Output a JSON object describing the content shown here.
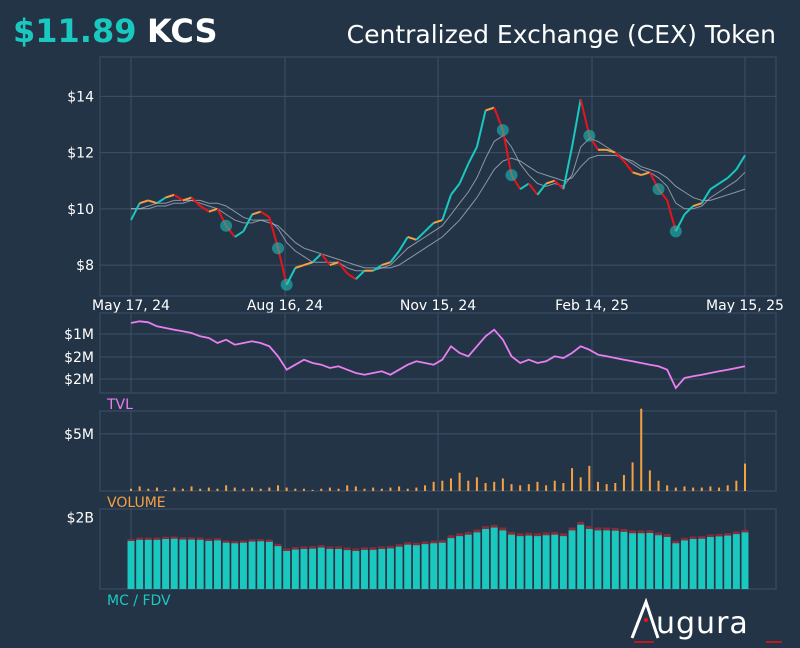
{
  "header": {
    "price": "$11.89",
    "ticker": "KCS",
    "token_name": "Centralized Exchange (CEX) Token"
  },
  "colors": {
    "background": "#243447",
    "grid": "#3d5068",
    "up": "#19c9c0",
    "flat": "#f5a142",
    "down": "#e8141a",
    "tvl": "#e87ff0",
    "volume": "#f5a142",
    "mcap": "#19c9c0",
    "fdv": "#8a2b3a",
    "ma": "#b8c0cc"
  },
  "brand": {
    "logo_text": "ugura",
    "logo_icon": "augura-a-logo-icon"
  },
  "chart_data": [
    {
      "type": "line",
      "title": "",
      "x_ticks": [
        "May 17, 24",
        "Aug 16, 24",
        "Nov 15, 24",
        "Feb 14, 25",
        "May 15, 25"
      ],
      "y_ticks": [
        "$8",
        "$10",
        "$12",
        "$14"
      ],
      "ylim": [
        6.9,
        15.4
      ],
      "x_range": [
        "2024-05-17",
        "2025-05-15"
      ],
      "grid": true,
      "series": [
        {
          "values": [
            9.6,
            10.2,
            10.3,
            10.2,
            10.4,
            10.5,
            10.3,
            10.4,
            10.1,
            9.9,
            10.0,
            9.4,
            9.0,
            9.2,
            9.8,
            9.9,
            9.7,
            8.6,
            7.3,
            7.9,
            8.0,
            8.1,
            8.4,
            8.0,
            8.1,
            7.7,
            7.5,
            7.8,
            7.8,
            8.0,
            8.1,
            8.5,
            9.0,
            8.9,
            9.2,
            9.5,
            9.6,
            10.5,
            10.9,
            11.6,
            12.2,
            13.5,
            13.6,
            12.8,
            11.2,
            10.7,
            10.9,
            10.5,
            10.9,
            11.0,
            10.7,
            12.2,
            13.9,
            12.6,
            12.1,
            12.1,
            12.0,
            11.7,
            11.3,
            11.2,
            11.3,
            10.7,
            10.3,
            9.2,
            9.8,
            10.1,
            10.2,
            10.7,
            10.9,
            11.1,
            11.4,
            11.9
          ]
        },
        {
          "values": [
            10.0,
            10.0,
            10.1,
            10.2,
            10.2,
            10.3,
            10.3,
            10.3,
            10.2,
            10.1,
            10.0,
            9.8,
            9.6,
            9.5,
            9.5,
            9.6,
            9.6,
            9.3,
            8.8,
            8.5,
            8.3,
            8.1,
            8.1,
            8.1,
            8.1,
            7.9,
            7.8,
            7.8,
            7.8,
            7.9,
            8.0,
            8.3,
            8.6,
            8.8,
            9.0,
            9.2,
            9.4,
            9.8,
            10.2,
            10.6,
            11.1,
            11.8,
            12.4,
            12.6,
            12.2,
            11.6,
            11.2,
            10.9,
            10.8,
            10.9,
            10.8,
            11.2,
            12.2,
            12.5,
            12.4,
            12.2,
            12.0,
            11.8,
            11.6,
            11.4,
            11.3,
            11.1,
            10.8,
            10.2,
            10.0,
            10.0,
            10.1,
            10.4,
            10.6,
            10.8,
            11.0,
            11.3
          ]
        },
        {
          "values": [
            10.0,
            10.0,
            10.0,
            10.1,
            10.1,
            10.2,
            10.2,
            10.3,
            10.3,
            10.2,
            10.2,
            10.1,
            9.9,
            9.7,
            9.6,
            9.6,
            9.5,
            9.4,
            9.1,
            8.8,
            8.6,
            8.5,
            8.4,
            8.3,
            8.2,
            8.1,
            8.0,
            7.9,
            7.9,
            7.9,
            7.9,
            8.0,
            8.2,
            8.4,
            8.6,
            8.8,
            9.0,
            9.3,
            9.6,
            10.0,
            10.4,
            10.9,
            11.4,
            11.7,
            11.8,
            11.7,
            11.5,
            11.3,
            11.2,
            11.1,
            11.0,
            11.1,
            11.5,
            11.8,
            11.9,
            11.9,
            11.9,
            11.8,
            11.7,
            11.5,
            11.4,
            11.3,
            11.1,
            10.8,
            10.6,
            10.4,
            10.3,
            10.3,
            10.4,
            10.5,
            10.6,
            10.7
          ]
        }
      ]
    },
    {
      "type": "line",
      "title": "TVL",
      "y_ticks": [
        "$1M",
        "$2M",
        "$2M"
      ],
      "ylim": [
        0.6,
        3.0
      ],
      "series": [
        {
          "name": "TVL",
          "values": [
            2.7,
            2.75,
            2.72,
            2.6,
            2.55,
            2.5,
            2.45,
            2.4,
            2.3,
            2.25,
            2.1,
            2.2,
            2.05,
            2.1,
            2.15,
            2.1,
            2.0,
            1.7,
            1.3,
            1.45,
            1.6,
            1.5,
            1.45,
            1.35,
            1.4,
            1.3,
            1.2,
            1.15,
            1.2,
            1.25,
            1.15,
            1.3,
            1.45,
            1.55,
            1.5,
            1.45,
            1.6,
            2.0,
            1.8,
            1.7,
            2.0,
            2.3,
            2.5,
            2.2,
            1.7,
            1.5,
            1.6,
            1.5,
            1.55,
            1.7,
            1.65,
            1.8,
            2.0,
            1.9,
            1.75,
            1.7,
            1.65,
            1.6,
            1.55,
            1.5,
            1.45,
            1.4,
            1.3,
            0.75,
            1.05,
            1.1,
            1.15,
            1.2,
            1.25,
            1.3,
            1.35,
            1.4
          ]
        }
      ]
    },
    {
      "type": "bar",
      "title": "VOLUME",
      "y_ticks": [
        "$5M"
      ],
      "ylim": [
        0,
        7.0
      ],
      "series": [
        {
          "name": "VOLUME",
          "values": [
            0.2,
            0.4,
            0.2,
            0.3,
            0.1,
            0.3,
            0.2,
            0.4,
            0.2,
            0.3,
            0.2,
            0.5,
            0.3,
            0.2,
            0.3,
            0.2,
            0.3,
            0.5,
            0.3,
            0.2,
            0.2,
            0.1,
            0.2,
            0.3,
            0.2,
            0.5,
            0.4,
            0.2,
            0.3,
            0.2,
            0.3,
            0.4,
            0.2,
            0.3,
            0.5,
            0.8,
            0.9,
            1.1,
            1.6,
            0.9,
            1.2,
            0.7,
            0.8,
            1.1,
            0.6,
            0.5,
            0.6,
            0.8,
            0.5,
            0.9,
            0.7,
            2.0,
            1.2,
            2.2,
            0.8,
            0.6,
            0.7,
            1.4,
            2.5,
            7.2,
            1.8,
            0.9,
            0.5,
            0.3,
            0.4,
            0.3,
            0.3,
            0.4,
            0.3,
            0.5,
            0.9,
            2.4
          ]
        }
      ]
    },
    {
      "type": "bar",
      "title": "MC / FDV",
      "y_ticks": [
        "$2B"
      ],
      "ylim": [
        0,
        2.8
      ],
      "series": [
        {
          "name": "MC",
          "values": [
            1.68,
            1.72,
            1.72,
            1.72,
            1.75,
            1.76,
            1.73,
            1.73,
            1.72,
            1.68,
            1.7,
            1.62,
            1.6,
            1.62,
            1.66,
            1.67,
            1.65,
            1.5,
            1.33,
            1.38,
            1.4,
            1.41,
            1.45,
            1.4,
            1.4,
            1.36,
            1.33,
            1.37,
            1.37,
            1.4,
            1.42,
            1.48,
            1.55,
            1.53,
            1.57,
            1.6,
            1.62,
            1.78,
            1.85,
            1.9,
            1.98,
            2.1,
            2.15,
            2.05,
            1.9,
            1.85,
            1.87,
            1.85,
            1.88,
            1.9,
            1.85,
            2.05,
            2.25,
            2.1,
            2.05,
            2.05,
            2.04,
            2.0,
            1.95,
            1.95,
            1.96,
            1.88,
            1.82,
            1.6,
            1.7,
            1.75,
            1.76,
            1.82,
            1.84,
            1.87,
            1.92,
            1.98
          ]
        },
        {
          "name": "FDV",
          "values": [
            1.75,
            1.8,
            1.8,
            1.8,
            1.83,
            1.84,
            1.81,
            1.81,
            1.8,
            1.76,
            1.78,
            1.7,
            1.68,
            1.7,
            1.74,
            1.75,
            1.73,
            1.58,
            1.42,
            1.47,
            1.49,
            1.5,
            1.54,
            1.49,
            1.49,
            1.45,
            1.42,
            1.46,
            1.46,
            1.49,
            1.51,
            1.57,
            1.64,
            1.62,
            1.66,
            1.69,
            1.71,
            1.88,
            1.95,
            2.0,
            2.08,
            2.2,
            2.25,
            2.15,
            2.0,
            1.95,
            1.97,
            1.95,
            1.98,
            2.0,
            1.95,
            2.15,
            2.35,
            2.2,
            2.15,
            2.15,
            2.14,
            2.1,
            2.05,
            2.05,
            2.06,
            1.98,
            1.92,
            1.69,
            1.79,
            1.84,
            1.85,
            1.91,
            1.93,
            1.96,
            2.01,
            2.07
          ]
        }
      ]
    }
  ]
}
